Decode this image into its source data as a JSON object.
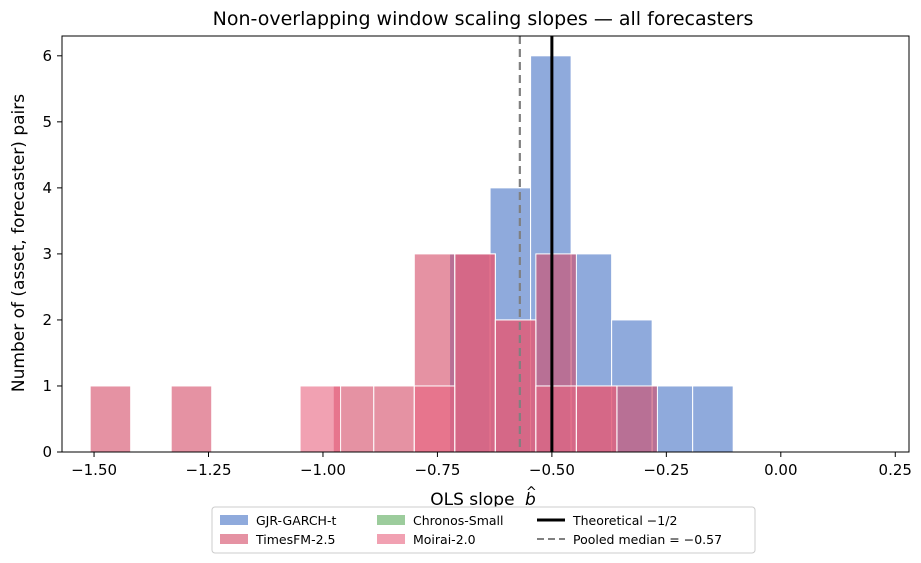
{
  "chart_data": {
    "type": "bar",
    "title": "Non-overlapping window scaling slopes — all forecasters",
    "xlabel": "OLS slope",
    "xlabel_symbol": "b",
    "xlabel_accent": "^",
    "ylabel": "Number of (asset, forecaster) pairs",
    "xlim": [
      -1.57,
      0.28
    ],
    "ylim": [
      0,
      6.3
    ],
    "xticks": [
      -1.5,
      -1.25,
      -1.0,
      -0.75,
      -0.5,
      -0.25,
      0.0,
      0.25
    ],
    "xtick_labels": [
      "−1.50",
      "−1.25",
      "−1.00",
      "−0.75",
      "−0.50",
      "−0.25",
      "0.00",
      "0.25"
    ],
    "yticks": [
      0,
      1,
      2,
      3,
      4,
      5,
      6
    ],
    "ytick_labels": [
      "0",
      "1",
      "2",
      "3",
      "4",
      "5",
      "6"
    ],
    "bin_width": 0.0885,
    "grid": false,
    "legend_position": "below",
    "series": [
      {
        "name": "GJR-GARCH-t",
        "color": "#4472c4",
        "bars": [
          {
            "x0": -0.7235,
            "x1": -0.635,
            "count": 3
          },
          {
            "x0": -0.635,
            "x1": -0.5465,
            "count": 4
          },
          {
            "x0": -0.5465,
            "x1": -0.458,
            "count": 6
          },
          {
            "x0": -0.458,
            "x1": -0.3695,
            "count": 3
          },
          {
            "x0": -0.3695,
            "x1": -0.281,
            "count": 2
          },
          {
            "x0": -0.281,
            "x1": -0.1925,
            "count": 1
          },
          {
            "x0": -0.1925,
            "x1": -0.104,
            "count": 1
          }
        ]
      },
      {
        "name": "TimesFM-2.5",
        "color": "#d44a66",
        "bars": [
          {
            "x0": -1.5085,
            "x1": -1.42,
            "count": 1
          },
          {
            "x0": -1.3315,
            "x1": -1.243,
            "count": 1
          },
          {
            "x0": -0.9775,
            "x1": -0.889,
            "count": 1
          },
          {
            "x0": -0.889,
            "x1": -0.8005,
            "count": 1
          },
          {
            "x0": -0.8005,
            "x1": -0.712,
            "count": 3
          },
          {
            "x0": -0.712,
            "x1": -0.6235,
            "count": 3
          },
          {
            "x0": -0.6235,
            "x1": -0.535,
            "count": 2
          },
          {
            "x0": -0.535,
            "x1": -0.4465,
            "count": 3
          },
          {
            "x0": -0.4465,
            "x1": -0.358,
            "count": 1
          },
          {
            "x0": -0.358,
            "x1": -0.2695,
            "count": 1
          }
        ]
      },
      {
        "name": "Chronos-Small",
        "color": "#5aaa5a",
        "bars": []
      },
      {
        "name": "Moirai-2.0",
        "color": "#e8627f",
        "bars": [
          {
            "x0": -1.05,
            "x1": -0.9615,
            "count": 1
          },
          {
            "x0": -0.8005,
            "x1": -0.712,
            "count": 1
          },
          {
            "x0": -0.712,
            "x1": -0.6235,
            "count": 3
          },
          {
            "x0": -0.6235,
            "x1": -0.535,
            "count": 2
          },
          {
            "x0": -0.535,
            "x1": -0.4465,
            "count": 1
          },
          {
            "x0": -0.4465,
            "x1": -0.358,
            "count": 1
          }
        ]
      }
    ],
    "reference_lines": [
      {
        "name": "Theoretical −1/2",
        "x": -0.5,
        "style": "solid",
        "color": "#000000"
      },
      {
        "name": "Pooled median  = −0.57",
        "x": -0.57,
        "style": "dashed",
        "color": "#808080"
      }
    ]
  }
}
